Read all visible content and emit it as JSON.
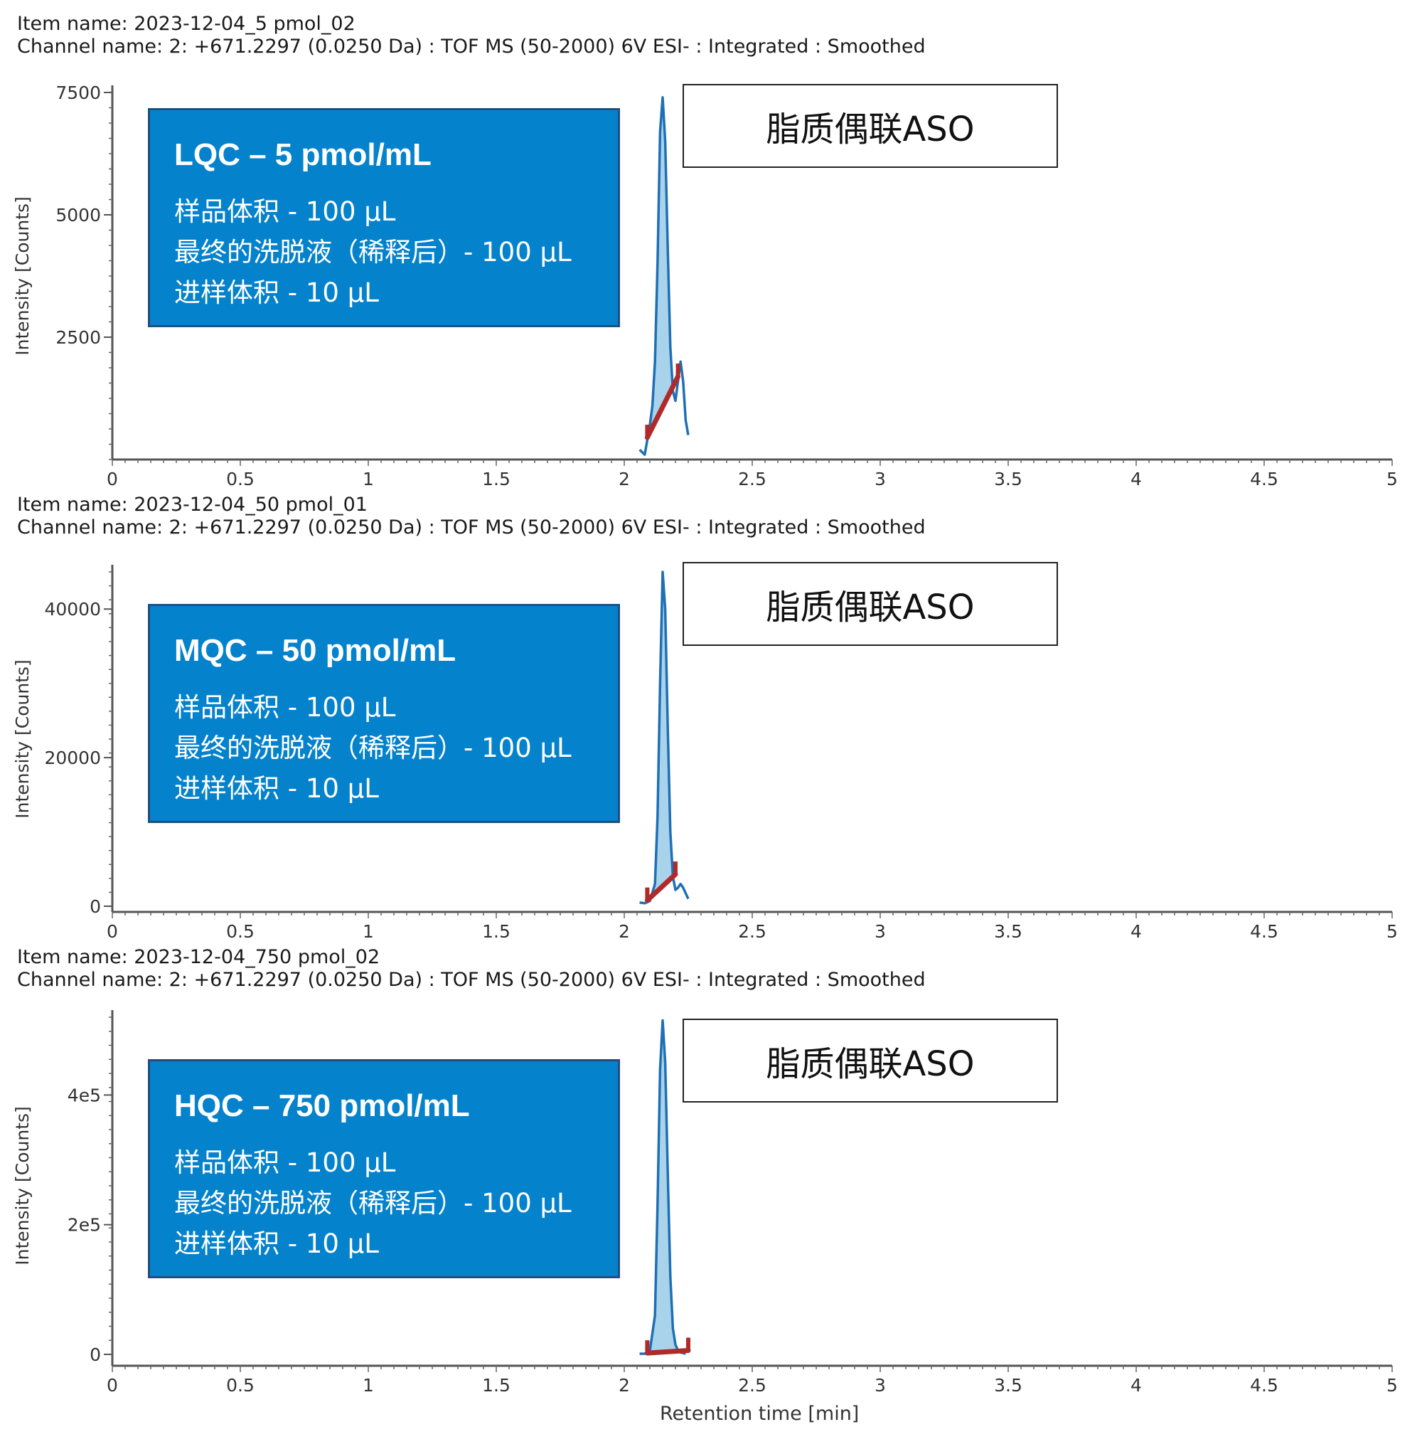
{
  "x_axis_title": "Retention time [min]",
  "chart_data": [
    {
      "type": "line",
      "item_name": "Item name: 2023-12-04_5 pmol_02",
      "channel_name": "Channel name: 2: +671.2297 (0.0250 Da) : TOF MS (50-2000) 6V ESI- : Integrated : Smoothed",
      "ylabel": "Intensity [Counts]",
      "xlabel": "",
      "xlim": [
        0,
        5
      ],
      "ylim": [
        0,
        7500
      ],
      "x_ticks": [
        "0",
        "0.5",
        "1",
        "1.5",
        "2",
        "2.5",
        "3",
        "3.5",
        "4",
        "4.5",
        "5"
      ],
      "y_ticks": [
        {
          "value": 2500,
          "label": "2500"
        },
        {
          "value": 5000,
          "label": "5000"
        },
        {
          "value": 7500,
          "label": "7500"
        }
      ],
      "x": [
        2.06,
        2.08,
        2.09,
        2.1,
        2.11,
        2.12,
        2.13,
        2.14,
        2.15,
        2.16,
        2.17,
        2.18,
        2.19,
        2.2,
        2.21,
        2.22,
        2.23,
        2.24,
        2.25
      ],
      "y": [
        200,
        100,
        400,
        700,
        1100,
        2000,
        4000,
        6700,
        7400,
        6500,
        4300,
        2300,
        1400,
        1200,
        1600,
        2000,
        1600,
        800,
        500
      ],
      "baseline": {
        "x": [
          2.09,
          2.21
        ],
        "y": [
          450,
          1700
        ]
      },
      "qc_label": "LQC – 5 pmol/mL",
      "sample_volume": "样品体积 - 100 µL",
      "final_eluent": "最终的洗脱液（稀释后）- 100 µL",
      "injection_volume": "进样体积 - 10 µL",
      "analyte_label": "脂质偶联ASO"
    },
    {
      "type": "line",
      "item_name": "Item name: 2023-12-04_50 pmol_01",
      "channel_name": "Channel name: 2: +671.2297 (0.0250 Da) : TOF MS (50-2000) 6V ESI- : Integrated : Smoothed",
      "ylabel": "Intensity [Counts]",
      "xlabel": "",
      "xlim": [
        0,
        5
      ],
      "ylim": [
        0,
        45000
      ],
      "x_ticks": [
        "0",
        "0.5",
        "1",
        "1.5",
        "2",
        "2.5",
        "3",
        "3.5",
        "4",
        "4.5",
        "5"
      ],
      "y_ticks": [
        {
          "value": 0,
          "label": "0"
        },
        {
          "value": 20000,
          "label": "20000"
        },
        {
          "value": 40000,
          "label": "40000"
        }
      ],
      "x": [
        2.06,
        2.08,
        2.1,
        2.12,
        2.13,
        2.14,
        2.15,
        2.16,
        2.17,
        2.18,
        2.19,
        2.2,
        2.21,
        2.22,
        2.23,
        2.25
      ],
      "y": [
        500,
        400,
        700,
        3000,
        12000,
        30000,
        45000,
        40000,
        24000,
        10000,
        4000,
        2200,
        2500,
        3000,
        2500,
        1000
      ],
      "baseline": {
        "x": [
          2.09,
          2.2
        ],
        "y": [
          800,
          4300
        ]
      },
      "qc_label": "MQC – 50 pmol/mL",
      "sample_volume": "样品体积 - 100 µL",
      "final_eluent": "最终的洗脱液（稀释后）- 100 µL",
      "injection_volume": "进样体积 - 10 µL",
      "analyte_label": "脂质偶联ASO"
    },
    {
      "type": "line",
      "item_name": "Item name: 2023-12-04_750 pmol_02",
      "channel_name": "Channel name: 2: +671.2297 (0.0250 Da) : TOF MS (50-2000) 6V ESI- : Integrated : Smoothed",
      "ylabel": "Intensity [Counts]",
      "xlabel": "Retention time [min]",
      "xlim": [
        0,
        5
      ],
      "ylim": [
        0,
        5200
      ],
      "y_scale_note": "values in units of 100",
      "x_ticks": [
        "0",
        "0.5",
        "1",
        "1.5",
        "2",
        "2.5",
        "3",
        "3.5",
        "4",
        "4.5",
        "5"
      ],
      "y_ticks": [
        {
          "value": 0,
          "label": "0"
        },
        {
          "value": 2000,
          "label": "2e5"
        },
        {
          "value": 4000,
          "label": "4e5"
        }
      ],
      "x": [
        2.06,
        2.08,
        2.1,
        2.12,
        2.13,
        2.14,
        2.15,
        2.16,
        2.17,
        2.18,
        2.19,
        2.2,
        2.21,
        2.22,
        2.24
      ],
      "y": [
        10,
        10,
        50,
        600,
        2300,
        4400,
        5150,
        4500,
        2800,
        1200,
        400,
        150,
        60,
        30,
        10
      ],
      "baseline": {
        "x": [
          2.09,
          2.25
        ],
        "y": [
          20,
          60
        ]
      },
      "qc_label": "HQC – 750 pmol/mL",
      "sample_volume": "样品体积 - 100 µL",
      "final_eluent": "最终的洗脱液（稀释后）- 100 µL",
      "injection_volume": "进样体积 - 10 µL",
      "analyte_label": "脂质偶联ASO"
    }
  ]
}
